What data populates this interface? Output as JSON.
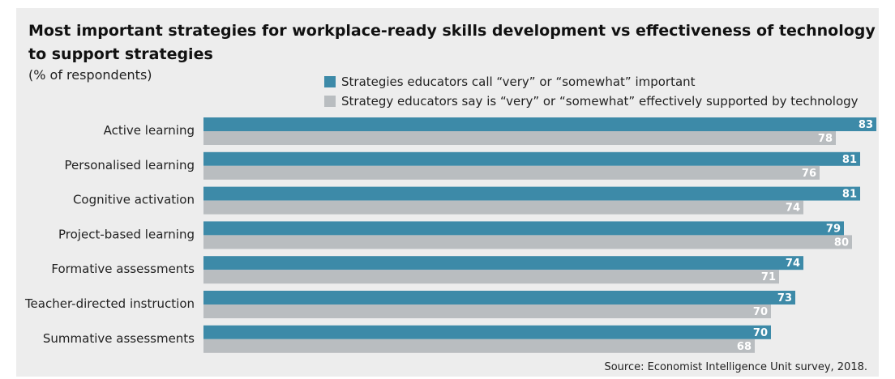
{
  "chart_data": {
    "type": "bar",
    "orientation": "horizontal",
    "title": "Most important strategies for workplace-ready skills development vs effectiveness of technology to support strategies",
    "subtitle": "(% of respondents)",
    "categories": [
      "Active learning",
      "Personalised learning",
      "Cognitive activation",
      "Project-based learning",
      "Formative assessments",
      "Teacher-directed instruction",
      "Summative assessments"
    ],
    "series": [
      {
        "name": "Strategies educators call “very” or “somewhat” important",
        "color": "#3d8aa8",
        "values": [
          83,
          81,
          81,
          79,
          74,
          73,
          70
        ]
      },
      {
        "name": "Strategy educators say is “very” or “somewhat” effectively supported by technology",
        "color": "#b9bdc0",
        "values": [
          78,
          76,
          74,
          80,
          71,
          70,
          68
        ]
      }
    ],
    "xlim": [
      0,
      83
    ],
    "grid": false,
    "legend_position": "top-right",
    "data_labels": true
  },
  "source": "Source: Economist Intelligence Unit survey, 2018."
}
